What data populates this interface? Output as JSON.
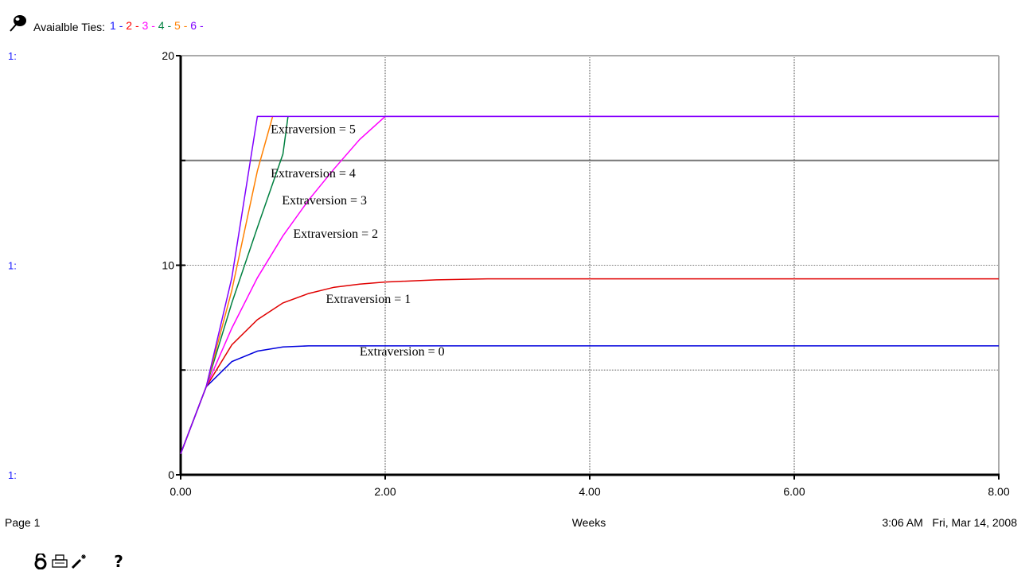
{
  "header": {
    "label": "Avaialble Ties:",
    "items": [
      {
        "text": "1",
        "color": "#1a1aff"
      },
      {
        "text": "2",
        "color": "#ff0000"
      },
      {
        "text": "3",
        "color": "#ff00ff"
      },
      {
        "text": "4",
        "color": "#008040"
      },
      {
        "text": "5",
        "color": "#ff8000"
      },
      {
        "text": "6",
        "color": "#8000ff"
      }
    ],
    "separator": "-"
  },
  "chart_data": {
    "type": "line",
    "xlabel": "Weeks",
    "xlim": [
      0,
      8
    ],
    "ylim": [
      0,
      20
    ],
    "x_ticks": [
      "0.00",
      "2.00",
      "4.00",
      "6.00",
      "8.00"
    ],
    "y_ticks": [
      "0",
      "10",
      "20"
    ],
    "y_scale_labels": [
      "1:",
      "1:",
      "1:"
    ],
    "grid": true,
    "series": [
      {
        "name": "Extraversion = 0",
        "color": "#0000dd",
        "x": [
          0,
          0.25,
          0.5,
          0.75,
          1.0,
          1.25,
          1.5,
          2,
          3,
          4,
          5,
          6,
          7,
          8
        ],
        "y": [
          1.0,
          4.2,
          5.4,
          5.9,
          6.1,
          6.15,
          6.15,
          6.15,
          6.15,
          6.15,
          6.15,
          6.15,
          6.15,
          6.15
        ]
      },
      {
        "name": "Extraversion = 1",
        "color": "#e00000",
        "x": [
          0,
          0.25,
          0.5,
          0.75,
          1.0,
          1.25,
          1.5,
          1.75,
          2.0,
          2.5,
          3.0,
          4,
          5,
          6,
          7,
          8
        ],
        "y": [
          1.0,
          4.2,
          6.2,
          7.4,
          8.2,
          8.65,
          8.95,
          9.1,
          9.2,
          9.3,
          9.35,
          9.35,
          9.35,
          9.35,
          9.35,
          9.35
        ]
      },
      {
        "name": "Extraversion = 2",
        "color": "#ff00ff",
        "x": [
          0,
          0.25,
          0.5,
          0.75,
          1.0,
          1.25,
          1.5,
          1.75,
          2.0,
          4,
          6,
          8
        ],
        "y": [
          1.0,
          4.2,
          7.0,
          9.4,
          11.4,
          13.1,
          14.6,
          16.0,
          17.1,
          17.1,
          17.1,
          17.1
        ]
      },
      {
        "name": "Extraversion = 3",
        "color": "#008040",
        "x": [
          0,
          0.25,
          0.5,
          0.75,
          1.0,
          1.05
        ],
        "y": [
          1.0,
          4.2,
          8.2,
          11.8,
          15.3,
          17.1
        ]
      },
      {
        "name": "Extraversion = 4",
        "color": "#ff8000",
        "x": [
          0,
          0.25,
          0.5,
          0.75,
          0.9
        ],
        "y": [
          1.0,
          4.2,
          8.8,
          14.5,
          17.1
        ]
      },
      {
        "name": "Extraversion = 5",
        "color": "#8000ff",
        "x": [
          0,
          0.25,
          0.5,
          0.75,
          1,
          2,
          4,
          6,
          8
        ],
        "y": [
          1.0,
          4.2,
          9.4,
          17.1,
          17.1,
          17.1,
          17.1,
          17.1,
          17.1
        ]
      }
    ],
    "annotations": [
      {
        "text": "Extraversion = 5",
        "x": 0.88,
        "y": 16.3
      },
      {
        "text": "Extraversion = 4",
        "x": 0.88,
        "y": 14.2
      },
      {
        "text": "Extraversion = 3",
        "x": 0.99,
        "y": 12.9
      },
      {
        "text": "Extraversion = 2",
        "x": 1.1,
        "y": 11.3
      },
      {
        "text": "Extraversion = 1",
        "x": 1.42,
        "y": 8.2
      },
      {
        "text": "Extraversion = 0",
        "x": 1.75,
        "y": 5.7
      }
    ]
  },
  "footer": {
    "page": "Page 1",
    "timestamp": "3:06 AM   Fri, Mar 14, 2008"
  },
  "toolbar": {
    "icons": [
      "lock-icon",
      "printer-icon",
      "magic-wand-icon"
    ],
    "help": "?"
  }
}
